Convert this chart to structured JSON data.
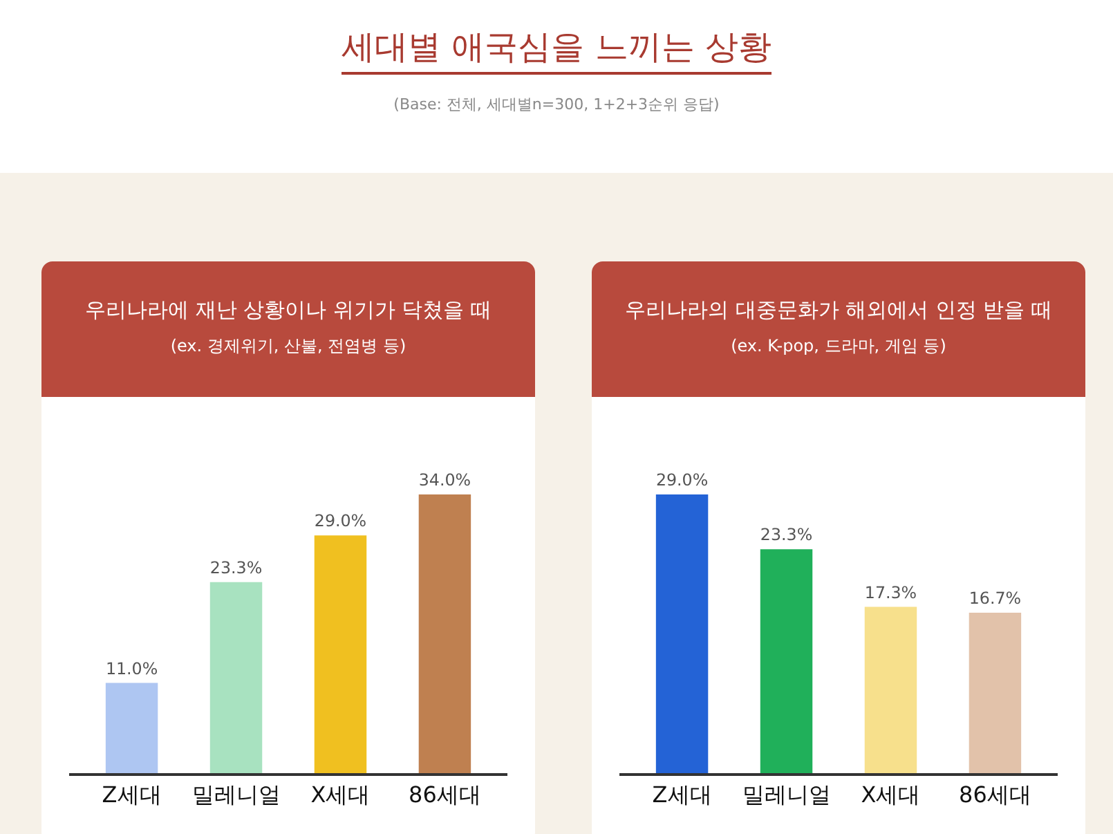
{
  "chart_data": [
    {
      "type": "bar",
      "title": "우리나라에 재난 상황이나 위기가 닥쳤을 때",
      "subtitle": "(ex. 경제위기, 산불, 전염병 등)",
      "annotations": [
        "세대별 애국심을 느끼는 상황",
        "(Base: 전체, 세대별n=300, 1+2+3순위 응답)"
      ],
      "categories": [
        "Z세대",
        "밀레니얼",
        "X세대",
        "86세대"
      ],
      "values": [
        11.0,
        23.3,
        29.0,
        34.0
      ],
      "value_labels": [
        "11.0%",
        "23.3%",
        "29.0%",
        "34.0%"
      ],
      "colors": [
        "#aec6f2",
        "#a8e2c0",
        "#f0c020",
        "#bf8050"
      ],
      "grid": false,
      "legend": false
    },
    {
      "type": "bar",
      "title": "우리나라의 대중문화가 해외에서 인정 받을 때",
      "subtitle": "(ex. K-pop, 드라마, 게임 등)",
      "categories": [
        "Z세대",
        "밀레니얼",
        "X세대",
        "86세대"
      ],
      "values": [
        29.0,
        23.3,
        17.3,
        16.7
      ],
      "value_labels": [
        "29.0%",
        "23.3%",
        "17.3%",
        "16.7%"
      ],
      "colors": [
        "#2463d6",
        "#20b05a",
        "#f7e08c",
        "#e2c2aa"
      ],
      "grid": false,
      "legend": false
    }
  ]
}
